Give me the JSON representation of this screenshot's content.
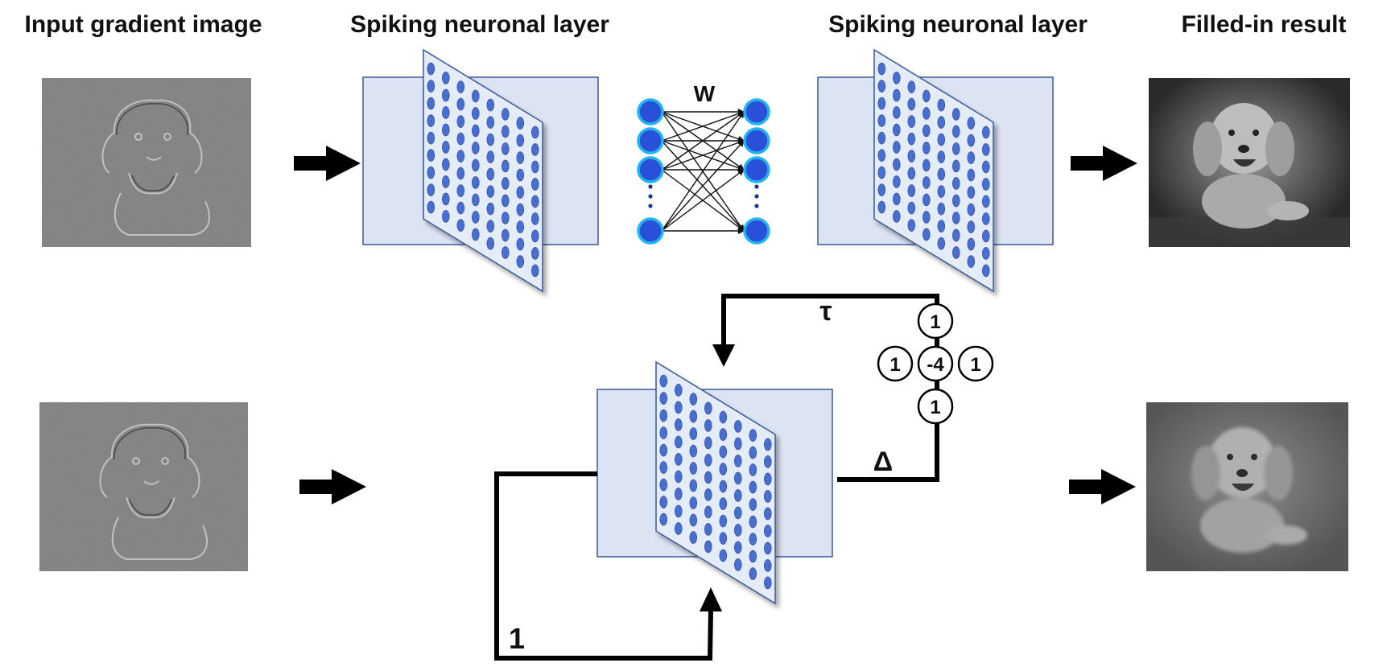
{
  "headers": {
    "input": "Input gradient image",
    "spiking_left": "Spiking neuronal layer",
    "spiking_right": "Spiking neuronal layer",
    "result": "Filled-in result"
  },
  "labels": {
    "weights": "W",
    "tau": "τ",
    "delta": "Δ",
    "self_weight": "1"
  },
  "kernel": {
    "top": "1",
    "left": "1",
    "center": "-4",
    "right": "1",
    "bottom": "1"
  },
  "colors": {
    "panel_fill": "#dce4f3",
    "panel_border": "#3a5a98",
    "sheet_fill": "#e3ecf7",
    "neuron_fill": "#4a6ed0",
    "node_fill": "#2850d8",
    "node_ring": "#23b4f0"
  }
}
